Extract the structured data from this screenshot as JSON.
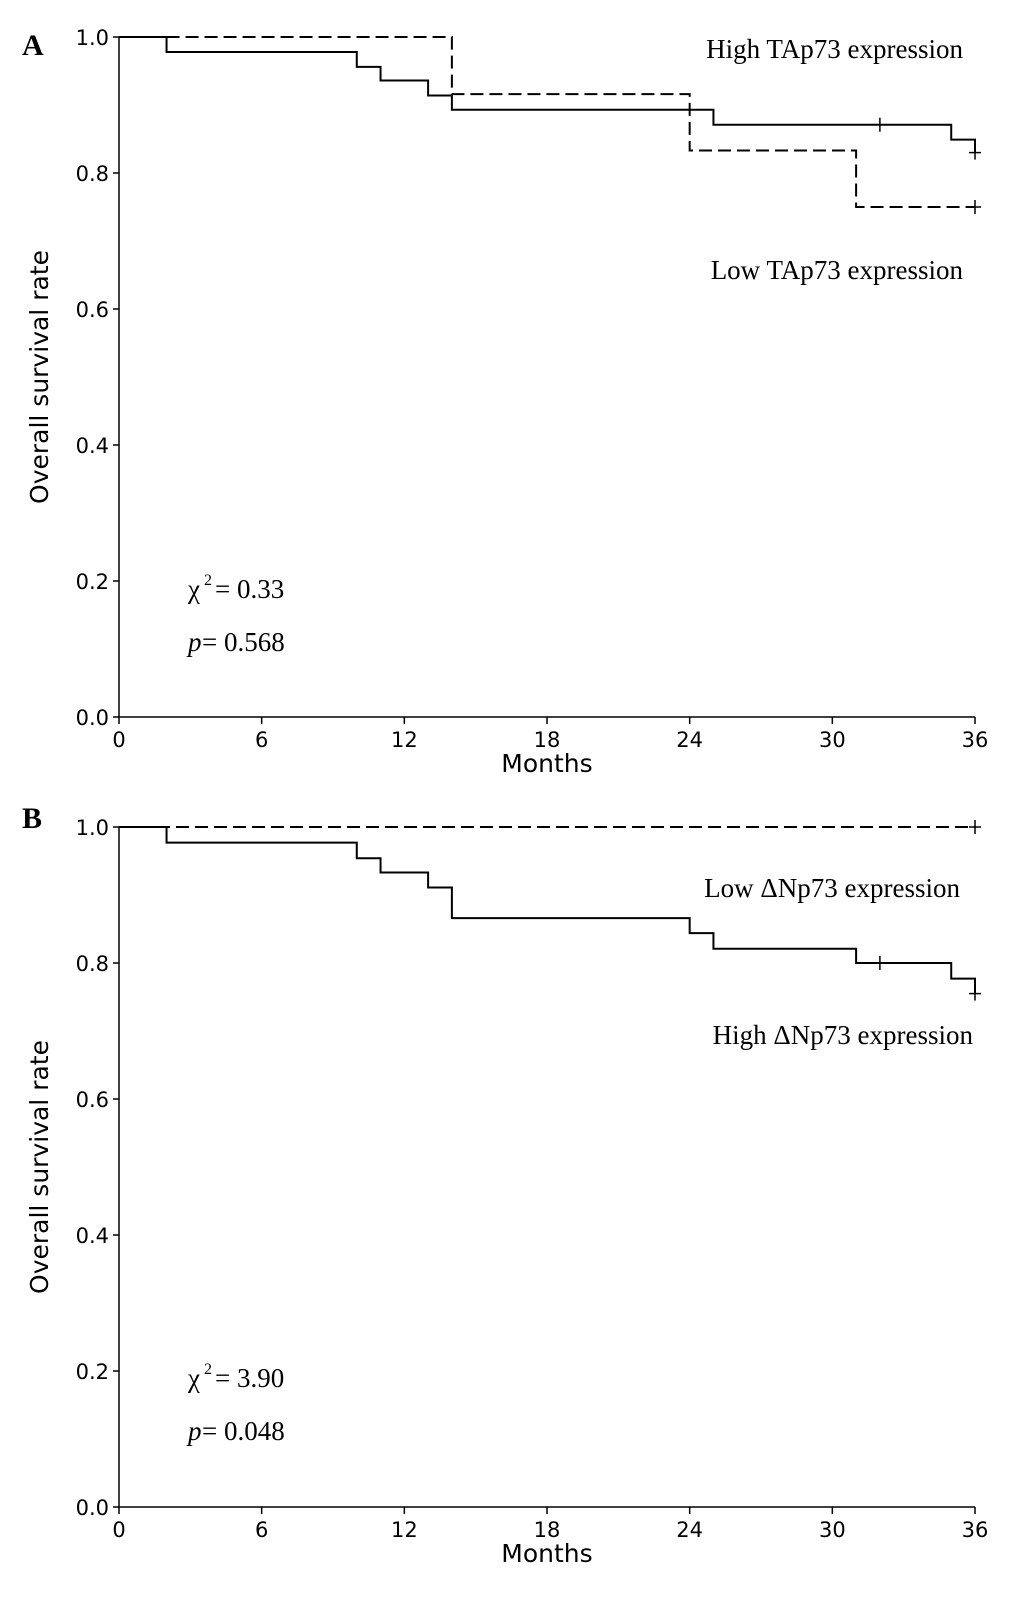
{
  "chart_data": [
    {
      "panel_label": "A",
      "type": "line",
      "subtype": "kaplan-meier step",
      "xlabel": "Months",
      "ylabel": "Overall survival rate",
      "xlim": [
        0,
        36
      ],
      "ylim": [
        0,
        1.0
      ],
      "xticks": [
        "0",
        "6",
        "12",
        "18",
        "24",
        "30",
        "36"
      ],
      "yticks": [
        "0.0",
        "0.2",
        "0.4",
        "0.6",
        "0.8",
        "1.0"
      ],
      "grid": false,
      "annotations": {
        "chi_label": "χ",
        "chi_sup": "2",
        "chi_value": "= 0.33",
        "p_label": "p",
        "p_value": "= 0.568"
      },
      "series": [
        {
          "name": "High TAp73 expression",
          "style": "solid",
          "steps": [
            [
              0,
              1.0
            ],
            [
              2,
              0.978
            ],
            [
              10,
              0.956
            ],
            [
              11,
              0.936
            ],
            [
              13,
              0.914
            ],
            [
              14,
              0.893
            ],
            [
              25,
              0.871
            ],
            [
              35,
              0.849
            ],
            [
              36,
              0.83
            ]
          ],
          "censored": [
            [
              32,
              0.871
            ],
            [
              36,
              0.83
            ]
          ]
        },
        {
          "name": "Low TAp73 expression",
          "style": "dashed",
          "steps": [
            [
              2,
              1.0
            ],
            [
              14,
              0.916
            ],
            [
              24,
              0.833
            ],
            [
              31,
              0.75
            ],
            [
              36,
              0.75
            ]
          ],
          "censored": [
            [
              36,
              0.75
            ]
          ]
        }
      ]
    },
    {
      "panel_label": "B",
      "type": "line",
      "subtype": "kaplan-meier step",
      "xlabel": "Months",
      "ylabel": "Overall survival rate",
      "xlim": [
        0,
        36
      ],
      "ylim": [
        0,
        1.0
      ],
      "xticks": [
        "0",
        "6",
        "12",
        "18",
        "24",
        "30",
        "36"
      ],
      "yticks": [
        "0.0",
        "0.2",
        "0.4",
        "0.6",
        "0.8",
        "1.0"
      ],
      "grid": false,
      "annotations": {
        "chi_label": "χ",
        "chi_sup": "2",
        "chi_value": "= 3.90",
        "p_label": "p",
        "p_value": "= 0.048"
      },
      "series": [
        {
          "name": "Low ΔNp73 expression",
          "style": "dashed",
          "steps": [
            [
              0,
              1.0
            ],
            [
              36,
              1.0
            ]
          ],
          "censored": [
            [
              36,
              1.0
            ]
          ]
        },
        {
          "name": "High ΔNp73 expression",
          "style": "solid",
          "steps": [
            [
              0,
              1.0
            ],
            [
              2,
              0.977
            ],
            [
              10,
              0.954
            ],
            [
              11,
              0.933
            ],
            [
              13,
              0.911
            ],
            [
              14,
              0.866
            ],
            [
              24,
              0.844
            ],
            [
              25,
              0.821
            ],
            [
              31,
              0.8
            ],
            [
              35,
              0.777
            ],
            [
              36,
              0.755
            ]
          ],
          "censored": [
            [
              32,
              0.8
            ],
            [
              36,
              0.755
            ]
          ]
        }
      ]
    }
  ]
}
